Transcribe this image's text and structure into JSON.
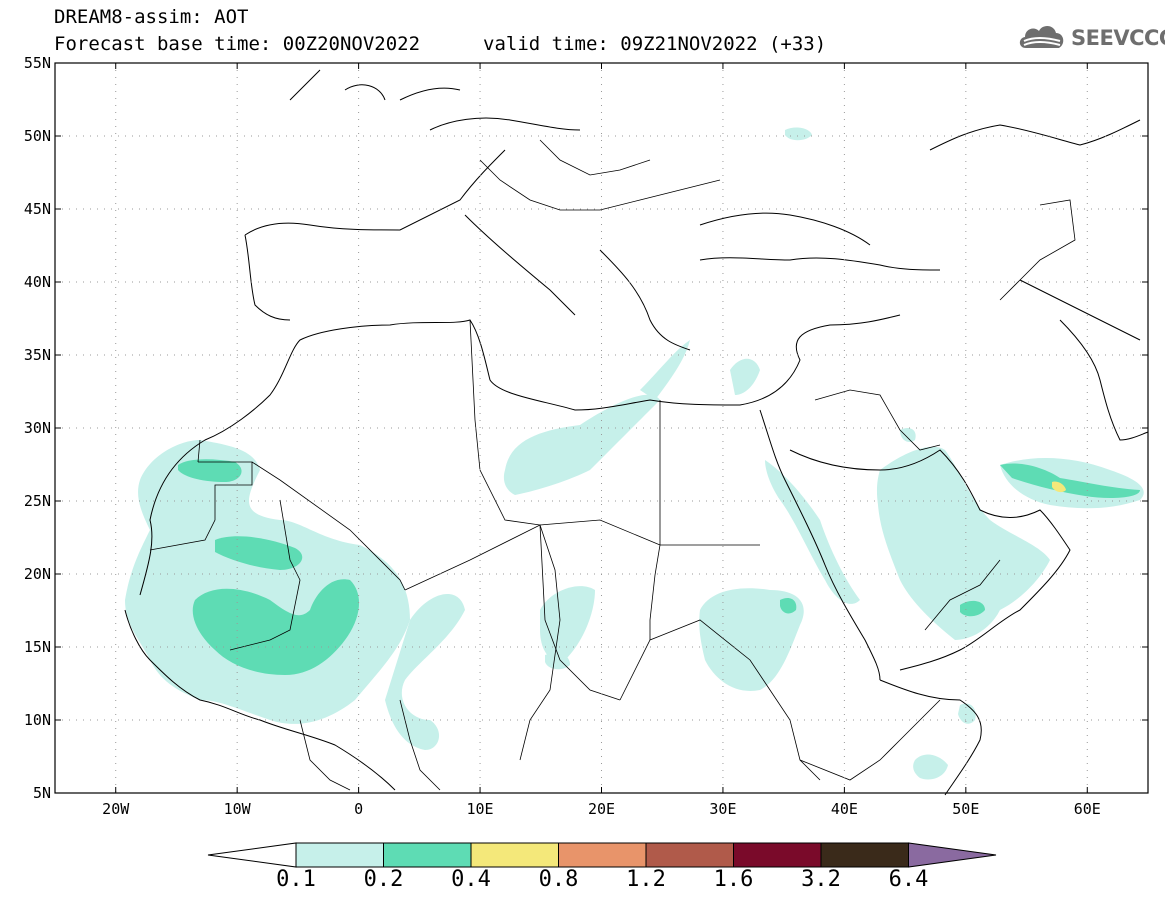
{
  "title": {
    "line1": "DREAM8-assim: AOT",
    "line2": "Forecast base time: 00Z20NOV2022",
    "valid": "valid time: 09Z21NOV2022 (+33)"
  },
  "logo": {
    "text": "SEEVCCC",
    "icon": "cloud-icon",
    "color": "#6e6e6e"
  },
  "map": {
    "lat_labels": [
      "55N",
      "50N",
      "45N",
      "40N",
      "35N",
      "30N",
      "25N",
      "20N",
      "15N",
      "10N",
      "5N"
    ],
    "lon_labels": [
      "20W",
      "10W",
      "0",
      "10E",
      "20E",
      "30E",
      "40E",
      "50E",
      "60E"
    ],
    "lat_range": [
      5,
      55
    ],
    "lon_range": [
      -25,
      65
    ],
    "grid": "dotted"
  },
  "colorbar": {
    "labels": [
      "0.1",
      "0.2",
      "0.4",
      "0.8",
      "1.2",
      "1.6",
      "3.2",
      "6.4"
    ],
    "colors": [
      "#ffffff",
      "#c6f0ea",
      "#5edcb4",
      "#f4e87a",
      "#e8946a",
      "#b05a4a",
      "#7a0a2a",
      "#3a2a1a",
      "#8a6aa0"
    ]
  }
}
